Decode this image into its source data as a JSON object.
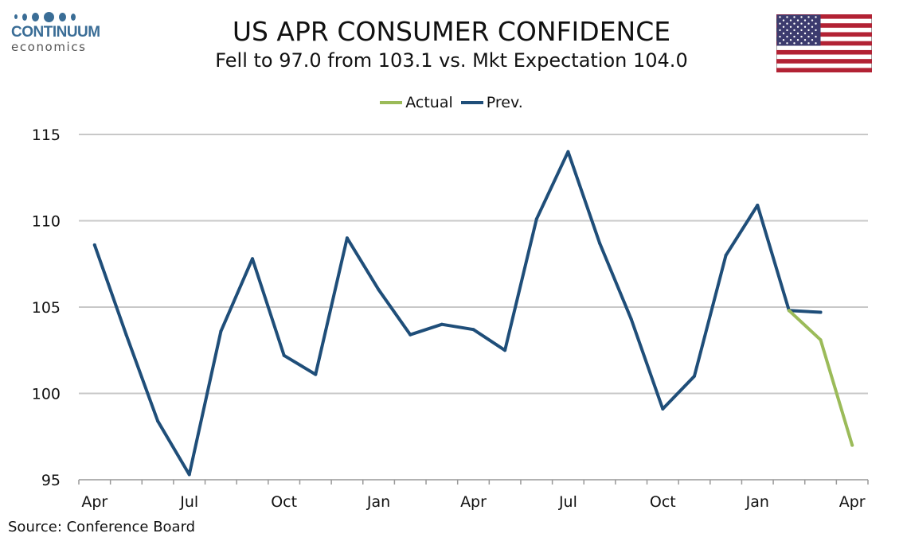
{
  "logo": {
    "brand": "CONTINUUM",
    "sub": "economics"
  },
  "header": {
    "title": "US APR CONSUMER CONFIDENCE",
    "subtitle": "Fell to 97.0 from 103.1 vs. Mkt Expectation 104.0"
  },
  "source": "Source: Conference Board",
  "colors": {
    "actual": "#9bbb59",
    "prev": "#1f4e79",
    "grid": "#c8c8c8",
    "brand": "#3a6d96"
  },
  "chart_data": {
    "type": "line",
    "title": "US APR CONSUMER CONFIDENCE",
    "subtitle": "Fell to 97.0 from 103.1 vs. Mkt Expectation 104.0",
    "xlabel": "",
    "ylabel": "",
    "ylim": [
      95,
      115
    ],
    "yticks": [
      95,
      100,
      105,
      110,
      115
    ],
    "grid": "horizontal",
    "legend_position": "top-center",
    "x_tick_labels": [
      {
        "index": 0,
        "label": "Apr"
      },
      {
        "index": 3,
        "label": "Jul"
      },
      {
        "index": 6,
        "label": "Oct"
      },
      {
        "index": 9,
        "label": "Jan"
      },
      {
        "index": 12,
        "label": "Apr"
      },
      {
        "index": 15,
        "label": "Jul"
      },
      {
        "index": 18,
        "label": "Oct"
      },
      {
        "index": 21,
        "label": "Jan"
      },
      {
        "index": 24,
        "label": "Apr"
      }
    ],
    "series": [
      {
        "name": "Actual",
        "color": "#9bbb59",
        "points": [
          {
            "index": 22,
            "value": 104.8
          },
          {
            "index": 23,
            "value": 103.1
          },
          {
            "index": 24,
            "value": 97.0
          }
        ]
      },
      {
        "name": "Prev.",
        "color": "#1f4e79",
        "points": [
          {
            "index": 0,
            "value": 108.6
          },
          {
            "index": 1,
            "value": 103.4
          },
          {
            "index": 2,
            "value": 98.4
          },
          {
            "index": 3,
            "value": 95.3
          },
          {
            "index": 4,
            "value": 103.6
          },
          {
            "index": 5,
            "value": 107.8
          },
          {
            "index": 6,
            "value": 102.2
          },
          {
            "index": 7,
            "value": 101.1
          },
          {
            "index": 8,
            "value": 109.0
          },
          {
            "index": 9,
            "value": 106.0
          },
          {
            "index": 10,
            "value": 103.4
          },
          {
            "index": 11,
            "value": 104.0
          },
          {
            "index": 12,
            "value": 103.7
          },
          {
            "index": 13,
            "value": 102.5
          },
          {
            "index": 14,
            "value": 110.1
          },
          {
            "index": 15,
            "value": 114.0
          },
          {
            "index": 16,
            "value": 108.7
          },
          {
            "index": 17,
            "value": 104.3
          },
          {
            "index": 18,
            "value": 99.1
          },
          {
            "index": 19,
            "value": 101.0
          },
          {
            "index": 20,
            "value": 108.0
          },
          {
            "index": 21,
            "value": 110.9
          },
          {
            "index": 22,
            "value": 104.8
          },
          {
            "index": 23,
            "value": 104.7
          }
        ]
      }
    ]
  }
}
